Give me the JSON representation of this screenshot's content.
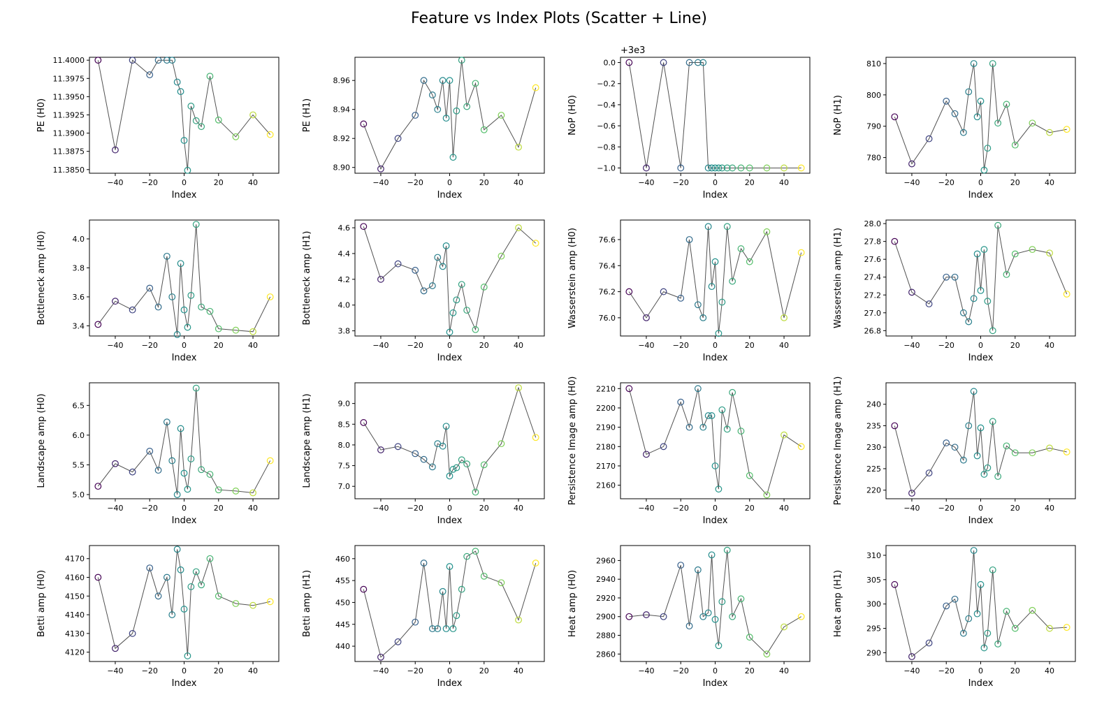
{
  "title": "Feature vs Index Plots (Scatter + Line)",
  "colormap": [
    "#440154",
    "#3b528b",
    "#21918c",
    "#5ec962",
    "#fde725"
  ],
  "chart_data": [
    {
      "type": "scatter",
      "ylabel": "PE (H0)",
      "xlabel": "Index",
      "xlim": [
        -55,
        55
      ],
      "xticks": [
        -40,
        -20,
        0,
        20,
        40
      ],
      "ylim": [
        11.3845,
        11.4004
      ],
      "yticks": [
        11.385,
        11.3875,
        11.39,
        11.3925,
        11.395,
        11.3975,
        11.4
      ],
      "ytick_labels": [
        "11.3850",
        "11.3875",
        "11.3900",
        "11.3925",
        "11.3950",
        "11.3975",
        "11.4000"
      ],
      "x": [
        -50,
        -40,
        -30,
        -20,
        -15,
        -10,
        -7,
        -4,
        -2,
        0,
        2,
        4,
        7,
        10,
        15,
        20,
        30,
        40,
        50
      ],
      "y": [
        11.4,
        11.3877,
        11.4,
        11.398,
        11.4,
        11.4,
        11.4,
        11.397,
        11.3957,
        11.389,
        11.3849,
        11.3937,
        11.3917,
        11.3909,
        11.3978,
        11.3918,
        11.3895,
        11.3925,
        11.3898
      ]
    },
    {
      "type": "scatter",
      "ylabel": "PE (H1)",
      "xlabel": "Index",
      "xlim": [
        -55,
        55
      ],
      "xticks": [
        -40,
        -20,
        0,
        20,
        40
      ],
      "ylim": [
        8.896,
        8.976
      ],
      "yticks": [
        8.9,
        8.92,
        8.94,
        8.96
      ],
      "ytick_labels": [
        "8.90",
        "8.92",
        "8.94",
        "8.96"
      ],
      "x": [
        -50,
        -40,
        -30,
        -20,
        -15,
        -10,
        -7,
        -4,
        -2,
        0,
        2,
        4,
        7,
        10,
        15,
        20,
        30,
        40,
        50
      ],
      "y": [
        8.93,
        8.899,
        8.92,
        8.936,
        8.96,
        8.95,
        8.94,
        8.96,
        8.934,
        8.96,
        8.907,
        8.939,
        8.974,
        8.942,
        8.958,
        8.926,
        8.936,
        8.914,
        8.955
      ]
    },
    {
      "type": "scatter",
      "ylabel": "NoP (H0)",
      "xlabel": "Index",
      "offset_label": "+3e3",
      "xlim": [
        -55,
        55
      ],
      "xticks": [
        -40,
        -20,
        0,
        20,
        40
      ],
      "ylim": [
        -1.05,
        0.05
      ],
      "yticks": [
        -1.0,
        -0.8,
        -0.6,
        -0.4,
        -0.2,
        0.0
      ],
      "ytick_labels": [
        "−1.0",
        "−0.8",
        "−0.6",
        "−0.4",
        "−0.2",
        "0.0"
      ],
      "x": [
        -50,
        -40,
        -30,
        -20,
        -15,
        -10,
        -7,
        -4,
        -2,
        0,
        2,
        4,
        7,
        10,
        15,
        20,
        30,
        40,
        50
      ],
      "y": [
        0,
        -1,
        0,
        -1,
        0,
        0,
        0,
        -1,
        -1,
        -1,
        -1,
        -1,
        -1,
        -1,
        -1,
        -1,
        -1,
        -1,
        -1
      ]
    },
    {
      "type": "scatter",
      "ylabel": "NoP (H1)",
      "xlabel": "Index",
      "xlim": [
        -55,
        55
      ],
      "xticks": [
        -40,
        -20,
        0,
        20,
        40
      ],
      "ylim": [
        775,
        812
      ],
      "yticks": [
        780,
        790,
        800,
        810
      ],
      "ytick_labels": [
        "780",
        "790",
        "800",
        "810"
      ],
      "x": [
        -50,
        -40,
        -30,
        -20,
        -15,
        -10,
        -7,
        -4,
        -2,
        0,
        2,
        4,
        7,
        10,
        15,
        20,
        30,
        40,
        50
      ],
      "y": [
        793,
        778,
        786,
        798,
        794,
        788,
        801,
        810,
        793,
        798,
        776,
        783,
        810,
        791,
        797,
        784,
        791,
        788,
        789
      ]
    },
    {
      "type": "scatter",
      "ylabel": "Bottleneck amp (H0)",
      "xlabel": "Index",
      "xlim": [
        -55,
        55
      ],
      "xticks": [
        -40,
        -20,
        0,
        20,
        40
      ],
      "ylim": [
        3.33,
        4.13
      ],
      "yticks": [
        3.4,
        3.6,
        3.8,
        4.0
      ],
      "ytick_labels": [
        "3.4",
        "3.6",
        "3.8",
        "4.0"
      ],
      "x": [
        -50,
        -40,
        -30,
        -20,
        -15,
        -10,
        -7,
        -4,
        -2,
        0,
        2,
        4,
        7,
        10,
        15,
        20,
        30,
        40,
        50
      ],
      "y": [
        3.41,
        3.57,
        3.51,
        3.66,
        3.53,
        3.88,
        3.6,
        3.34,
        3.83,
        3.51,
        3.39,
        3.61,
        4.1,
        3.53,
        3.5,
        3.38,
        3.37,
        3.36,
        3.6
      ]
    },
    {
      "type": "scatter",
      "ylabel": "Bottleneck amp (H1)",
      "xlabel": "Index",
      "xlim": [
        -55,
        55
      ],
      "xticks": [
        -40,
        -20,
        0,
        20,
        40
      ],
      "ylim": [
        3.76,
        4.66
      ],
      "yticks": [
        3.8,
        4.0,
        4.2,
        4.4,
        4.6
      ],
      "ytick_labels": [
        "3.8",
        "4.0",
        "4.2",
        "4.4",
        "4.6"
      ],
      "x": [
        -50,
        -40,
        -30,
        -20,
        -15,
        -10,
        -7,
        -4,
        -2,
        0,
        2,
        4,
        7,
        10,
        15,
        20,
        30,
        40,
        50
      ],
      "y": [
        4.61,
        4.2,
        4.32,
        4.27,
        4.11,
        4.15,
        4.37,
        4.3,
        4.46,
        3.79,
        3.94,
        4.04,
        4.16,
        3.96,
        3.81,
        4.14,
        4.38,
        4.6,
        4.48
      ]
    },
    {
      "type": "scatter",
      "ylabel": "Wasserstein amp (H0)",
      "xlabel": "Index",
      "xlim": [
        -55,
        55
      ],
      "xticks": [
        -40,
        -20,
        0,
        20,
        40
      ],
      "ylim": [
        75.86,
        76.75
      ],
      "yticks": [
        76.0,
        76.2,
        76.4,
        76.6
      ],
      "ytick_labels": [
        "76.0",
        "76.2",
        "76.4",
        "76.6"
      ],
      "x": [
        -50,
        -40,
        -30,
        -20,
        -15,
        -10,
        -7,
        -4,
        -2,
        0,
        2,
        4,
        7,
        10,
        15,
        20,
        30,
        40,
        50
      ],
      "y": [
        76.2,
        76.0,
        76.2,
        76.15,
        76.6,
        76.1,
        76.0,
        76.7,
        76.24,
        76.43,
        75.88,
        76.12,
        76.7,
        76.28,
        76.53,
        76.43,
        76.66,
        76.0,
        76.5
      ]
    },
    {
      "type": "scatter",
      "ylabel": "Wasserstein amp (H1)",
      "xlabel": "Index",
      "xlim": [
        -55,
        55
      ],
      "xticks": [
        -40,
        -20,
        0,
        20,
        40
      ],
      "ylim": [
        26.74,
        28.04
      ],
      "yticks": [
        26.8,
        27.0,
        27.2,
        27.4,
        27.6,
        27.8,
        28.0
      ],
      "ytick_labels": [
        "26.8",
        "27.0",
        "27.2",
        "27.4",
        "27.6",
        "27.8",
        "28.0"
      ],
      "x": [
        -50,
        -40,
        -30,
        -20,
        -15,
        -10,
        -7,
        -4,
        -2,
        0,
        2,
        4,
        7,
        10,
        15,
        20,
        30,
        40,
        50
      ],
      "y": [
        27.8,
        27.23,
        27.1,
        27.4,
        27.4,
        27.0,
        26.9,
        27.16,
        27.66,
        27.25,
        27.71,
        27.13,
        26.8,
        27.98,
        27.43,
        27.66,
        27.71,
        27.67,
        27.21
      ]
    },
    {
      "type": "scatter",
      "ylabel": "Landscape amp (H0)",
      "xlabel": "Index",
      "xlim": [
        -55,
        55
      ],
      "xticks": [
        -40,
        -20,
        0,
        20,
        40
      ],
      "ylim": [
        4.93,
        6.88
      ],
      "yticks": [
        5.0,
        5.5,
        6.0,
        6.5
      ],
      "ytick_labels": [
        "5.0",
        "5.5",
        "6.0",
        "6.5"
      ],
      "x": [
        -50,
        -40,
        -30,
        -20,
        -15,
        -10,
        -7,
        -4,
        -2,
        0,
        2,
        4,
        7,
        10,
        15,
        20,
        30,
        40,
        50
      ],
      "y": [
        5.14,
        5.52,
        5.38,
        5.73,
        5.41,
        6.22,
        5.57,
        5.0,
        6.11,
        5.36,
        5.09,
        5.6,
        6.79,
        5.42,
        5.34,
        5.08,
        5.06,
        5.03,
        5.57
      ]
    },
    {
      "type": "scatter",
      "ylabel": "Landscape amp (H1)",
      "xlabel": "Index",
      "xlim": [
        -55,
        55
      ],
      "xticks": [
        -40,
        -20,
        0,
        20,
        40
      ],
      "ylim": [
        6.7,
        9.5
      ],
      "yticks": [
        7.0,
        7.5,
        8.0,
        8.5,
        9.0
      ],
      "ytick_labels": [
        "7.0",
        "7.5",
        "8.0",
        "8.5",
        "9.0"
      ],
      "x": [
        -50,
        -40,
        -30,
        -20,
        -15,
        -10,
        -7,
        -4,
        -2,
        0,
        2,
        4,
        7,
        10,
        15,
        20,
        30,
        40,
        50
      ],
      "y": [
        8.54,
        7.88,
        7.96,
        7.79,
        7.65,
        7.47,
        8.03,
        7.97,
        8.45,
        7.25,
        7.41,
        7.45,
        7.64,
        7.54,
        6.86,
        7.52,
        8.03,
        9.38,
        8.18
      ]
    },
    {
      "type": "scatter",
      "ylabel": "Persistence Image amp (H0)",
      "xlabel": "Index",
      "xlim": [
        -55,
        55
      ],
      "xticks": [
        -40,
        -20,
        0,
        20,
        40
      ],
      "ylim": [
        2153,
        2213
      ],
      "yticks": [
        2160,
        2170,
        2180,
        2190,
        2200,
        2210
      ],
      "ytick_labels": [
        "2160",
        "2170",
        "2180",
        "2190",
        "2200",
        "2210"
      ],
      "x": [
        -50,
        -40,
        -30,
        -20,
        -15,
        -10,
        -7,
        -4,
        -2,
        0,
        2,
        4,
        7,
        10,
        15,
        20,
        30,
        40,
        50
      ],
      "y": [
        2210,
        2176,
        2180,
        2203,
        2190,
        2210,
        2190,
        2196,
        2196,
        2170,
        2158,
        2199,
        2189,
        2208,
        2188,
        2165,
        2155,
        2186,
        2180
      ]
    },
    {
      "type": "scatter",
      "ylabel": "Persistence Image amp (H1)",
      "xlabel": "Index",
      "xlim": [
        -55,
        55
      ],
      "xticks": [
        -40,
        -20,
        0,
        20,
        40
      ],
      "ylim": [
        218,
        245
      ],
      "yticks": [
        220,
        225,
        230,
        235,
        240
      ],
      "ytick_labels": [
        "220",
        "225",
        "230",
        "235",
        "240"
      ],
      "x": [
        -50,
        -40,
        -30,
        -20,
        -15,
        -10,
        -7,
        -4,
        -2,
        0,
        2,
        4,
        7,
        10,
        15,
        20,
        30,
        40,
        50
      ],
      "y": [
        235,
        219.3,
        224,
        231,
        230,
        227,
        235,
        243,
        228,
        234.5,
        223.7,
        225.2,
        236,
        223.2,
        230.3,
        228.7,
        228.7,
        229.8,
        228.9
      ]
    },
    {
      "type": "scatter",
      "ylabel": "Betti amp (H0)",
      "xlabel": "Index",
      "xlim": [
        -55,
        55
      ],
      "xticks": [
        -40,
        -20,
        0,
        20,
        40
      ],
      "ylim": [
        4115,
        4177
      ],
      "yticks": [
        4120,
        4130,
        4140,
        4150,
        4160,
        4170
      ],
      "ytick_labels": [
        "4120",
        "4130",
        "4140",
        "4150",
        "4160",
        "4170"
      ],
      "x": [
        -50,
        -40,
        -30,
        -20,
        -15,
        -10,
        -7,
        -4,
        -2,
        0,
        2,
        4,
        7,
        10,
        15,
        20,
        30,
        40,
        50
      ],
      "y": [
        4160,
        4122,
        4130,
        4165,
        4150,
        4160,
        4140,
        4175,
        4164,
        4143,
        4118,
        4155,
        4163,
        4156,
        4170,
        4150,
        4146,
        4145,
        4147
      ]
    },
    {
      "type": "scatter",
      "ylabel": "Betti amp (H1)",
      "xlabel": "Index",
      "xlim": [
        -55,
        55
      ],
      "xticks": [
        -40,
        -20,
        0,
        20,
        40
      ],
      "ylim": [
        436.5,
        463
      ],
      "yticks": [
        440,
        445,
        450,
        455,
        460
      ],
      "ytick_labels": [
        "440",
        "445",
        "450",
        "455",
        "460"
      ],
      "x": [
        -50,
        -40,
        -30,
        -20,
        -15,
        -10,
        -7,
        -4,
        -2,
        0,
        2,
        4,
        7,
        10,
        15,
        20,
        30,
        40,
        50
      ],
      "y": [
        453,
        437.5,
        441,
        445.5,
        459,
        444,
        444,
        452.5,
        444,
        458.2,
        444,
        447,
        453,
        460.5,
        461.7,
        456,
        454.5,
        446,
        459
      ]
    },
    {
      "type": "scatter",
      "ylabel": "Heat amp (H0)",
      "xlabel": "Index",
      "xlim": [
        -55,
        55
      ],
      "xticks": [
        -40,
        -20,
        0,
        20,
        40
      ],
      "ylim": [
        2852,
        2976
      ],
      "yticks": [
        2860,
        2880,
        2900,
        2920,
        2940,
        2960
      ],
      "ytick_labels": [
        "2860",
        "2880",
        "2900",
        "2920",
        "2940",
        "2960"
      ],
      "x": [
        -50,
        -40,
        -30,
        -20,
        -15,
        -10,
        -7,
        -4,
        -2,
        0,
        2,
        4,
        7,
        10,
        15,
        20,
        30,
        40,
        50
      ],
      "y": [
        2900,
        2902,
        2900,
        2955,
        2890,
        2950,
        2900,
        2904,
        2966,
        2897,
        2869,
        2916,
        2971,
        2900,
        2919,
        2878,
        2860,
        2889,
        2900
      ]
    },
    {
      "type": "scatter",
      "ylabel": "Heat amp (H1)",
      "xlabel": "Index",
      "xlim": [
        -55,
        55
      ],
      "xticks": [
        -40,
        -20,
        0,
        20,
        40
      ],
      "ylim": [
        288.2,
        312
      ],
      "yticks": [
        290,
        295,
        300,
        305,
        310
      ],
      "ytick_labels": [
        "290",
        "295",
        "300",
        "305",
        "310"
      ],
      "x": [
        -50,
        -40,
        -30,
        -20,
        -15,
        -10,
        -7,
        -4,
        -2,
        0,
        2,
        4,
        7,
        10,
        15,
        20,
        30,
        40,
        50
      ],
      "y": [
        304,
        289.2,
        292,
        299.6,
        301,
        294,
        297,
        311,
        298,
        304,
        291,
        294,
        307,
        291.8,
        298.5,
        295,
        298.7,
        295,
        295.2
      ]
    }
  ]
}
